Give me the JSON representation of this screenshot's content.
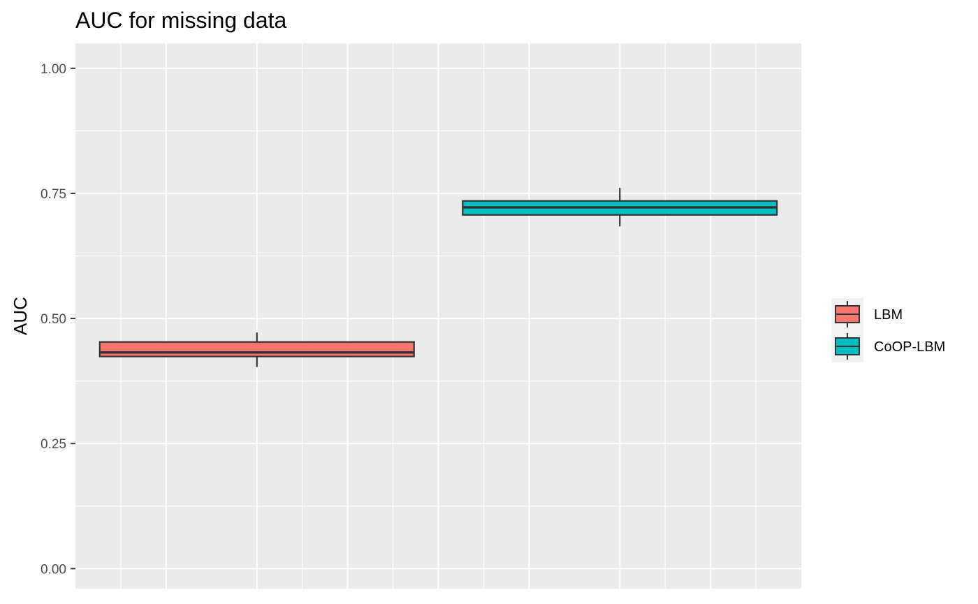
{
  "chart_data": {
    "type": "box",
    "title": "AUC for missing data",
    "xlabel": "",
    "ylabel": "AUC",
    "ylim": [
      -0.04,
      1.05
    ],
    "yticks": [
      0.0,
      0.25,
      0.5,
      0.75,
      1.0
    ],
    "ytick_labels": [
      "0.00",
      "0.25",
      "0.50",
      "0.75",
      "1.00"
    ],
    "grid": true,
    "legend_position": "right",
    "series": [
      {
        "name": "LBM",
        "color": "#F8766D",
        "min": 0.403,
        "q1": 0.424,
        "median": 0.432,
        "q3": 0.453,
        "max": 0.472
      },
      {
        "name": "CoOP-LBM",
        "color": "#00BFC4",
        "min": 0.684,
        "q1": 0.707,
        "median": 0.722,
        "q3": 0.735,
        "max": 0.761
      }
    ]
  }
}
